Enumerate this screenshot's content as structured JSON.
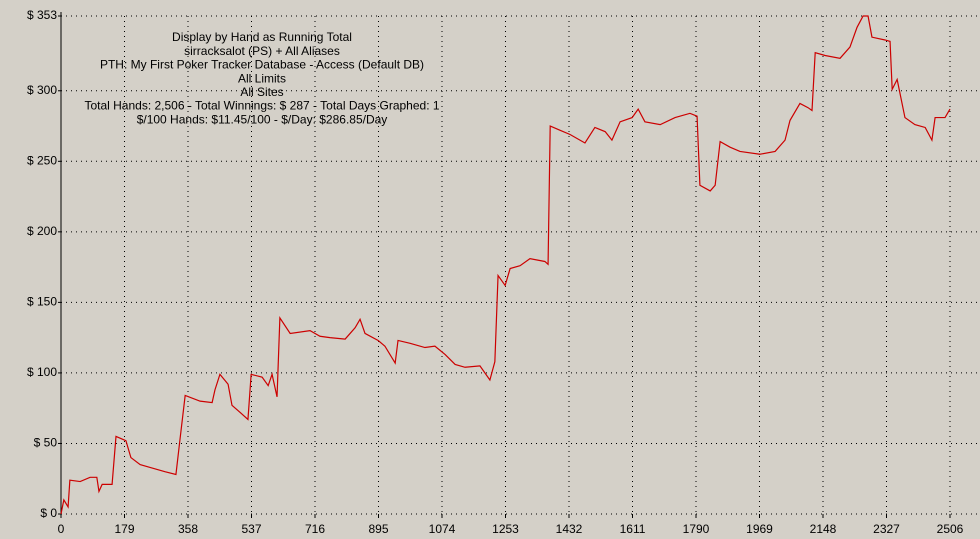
{
  "chart_data": {
    "type": "line",
    "annotations": [
      "Display by Hand as Running Total",
      "sirracksalot (PS) + All Aliases",
      "PTH: My First Poker Tracker Database - Access (Default DB)",
      "All Limits",
      "All Sites",
      "Total Hands: 2,506 - Total Winnings: $ 287 - Total Days Graphed: 1",
      "$/100 Hands: $11.45/100 - $/Day: $286.85/Day"
    ],
    "x": [
      0,
      8,
      20,
      25,
      54,
      82,
      101,
      107,
      116,
      144,
      155,
      183,
      197,
      223,
      251,
      293,
      324,
      335,
      350,
      392,
      426,
      434,
      448,
      471,
      482,
      505,
      527,
      536,
      567,
      584,
      595,
      609,
      617,
      646,
      702,
      730,
      758,
      801,
      829,
      843,
      857,
      894,
      913,
      942,
      950,
      984,
      1026,
      1054,
      1083,
      1111,
      1139,
      1181,
      1209,
      1223,
      1232,
      1252,
      1266,
      1294,
      1322,
      1364,
      1373,
      1379,
      1407,
      1435,
      1477,
      1505,
      1534,
      1553,
      1576,
      1610,
      1627,
      1646,
      1689,
      1731,
      1773,
      1793,
      1801,
      1830,
      1844,
      1858,
      1886,
      1914,
      1970,
      2013,
      2041,
      2055,
      2083,
      2106,
      2117,
      2126,
      2154,
      2196,
      2224,
      2244,
      2261,
      2275,
      2286,
      2323,
      2337,
      2343,
      2357,
      2379,
      2407,
      2436,
      2455,
      2464,
      2492,
      2506
    ],
    "values": [
      0,
      10,
      5,
      24,
      23,
      26,
      26,
      16,
      21,
      21,
      55,
      52,
      40,
      35,
      33,
      30,
      28,
      52,
      84,
      80,
      79,
      88,
      99,
      92,
      77,
      72,
      67,
      99,
      97,
      91,
      99,
      83,
      139,
      128,
      130,
      126,
      125,
      124,
      132,
      138,
      128,
      123,
      119,
      107,
      123,
      121,
      118,
      119,
      113,
      106,
      104,
      105,
      95,
      108,
      169,
      162,
      174,
      176,
      181,
      179,
      177,
      275,
      272,
      269,
      263,
      274,
      271,
      265,
      278,
      281,
      287,
      278,
      276,
      281,
      284,
      282,
      233,
      229,
      233,
      264,
      260,
      257,
      255,
      257,
      265,
      279,
      291,
      288,
      286,
      327,
      325,
      323,
      331,
      345,
      353,
      353,
      338,
      336,
      335,
      301,
      308,
      281,
      276,
      274,
      265,
      281,
      281,
      287
    ],
    "color": "#cc0000",
    "xlim": [
      0,
      2506
    ],
    "xticks": [
      0,
      179,
      358,
      537,
      716,
      895,
      1074,
      1253,
      1432,
      1611,
      1790,
      1969,
      2148,
      2327,
      2506
    ],
    "ylim": [
      0,
      353
    ],
    "yticks": [
      {
        "value": 0,
        "label": "$ 0"
      },
      {
        "value": 50,
        "label": "$ 50"
      },
      {
        "value": 100,
        "label": "$ 100"
      },
      {
        "value": 150,
        "label": "$ 150"
      },
      {
        "value": 200,
        "label": "$ 200"
      },
      {
        "value": 250,
        "label": "$ 250"
      },
      {
        "value": 300,
        "label": "$ 300"
      },
      {
        "value": 353,
        "label": "$ 353"
      }
    ],
    "grid": true
  }
}
